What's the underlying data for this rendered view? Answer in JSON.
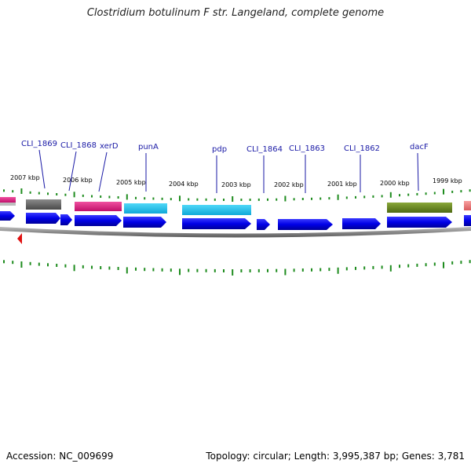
{
  "title": "Clostridium botulinum F str. Langeland, complete genome",
  "footer": {
    "accession": "Accession: NC_009699",
    "summary": "Topology: circular; Length: 3,995,387 bp; Genes: 3,781"
  },
  "colors": {
    "gene_label": "#1a1aa6",
    "tick": "#1e8c1e",
    "cds_blue": "#0a0af0",
    "backbone": "#8a8a8a",
    "origin_marker": "#e01010"
  },
  "scale_labels": [
    {
      "text": "2007 kbp"
    },
    {
      "text": "2006 kbp"
    },
    {
      "text": "2005 kbp"
    },
    {
      "text": "2004 kbp"
    },
    {
      "text": "2003 kbp"
    },
    {
      "text": "2002 kbp"
    },
    {
      "text": "2001 kbp"
    },
    {
      "text": "2000 kbp"
    },
    {
      "text": "1999 kbp"
    }
  ],
  "gene_labels": [
    {
      "text": "CLI_1869"
    },
    {
      "text": "CLI_1868"
    },
    {
      "text": "xerD"
    },
    {
      "text": "punA"
    },
    {
      "text": "pdp"
    },
    {
      "text": "CLI_1864"
    },
    {
      "text": "CLI_1863"
    },
    {
      "text": "CLI_1862"
    },
    {
      "text": "dacF"
    }
  ],
  "feature_colors": {
    "gray": "#6e6e6e",
    "magenta": "#e8268a",
    "cyan": "#20c4ec",
    "olive": "#6e8c1e",
    "pink": "#e8787a"
  }
}
